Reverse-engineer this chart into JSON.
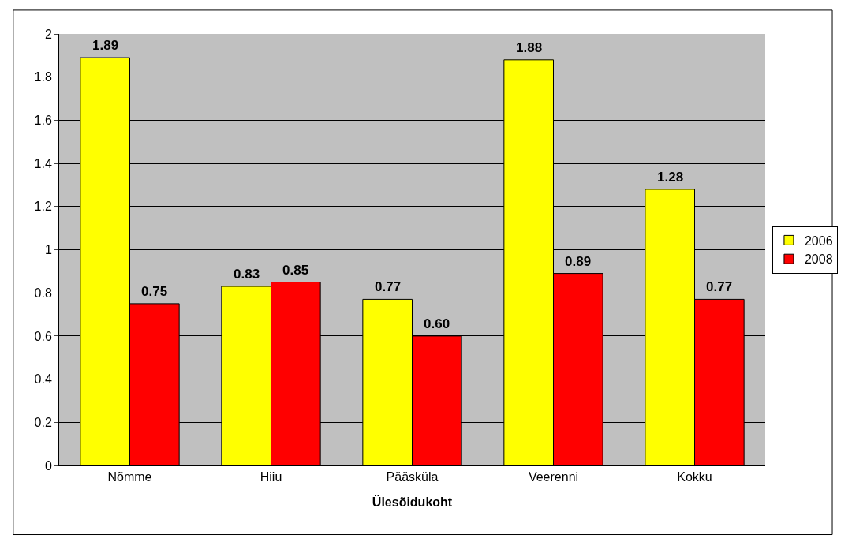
{
  "chart_data": {
    "type": "bar",
    "xlabel": "Ülesõidukoht",
    "categories": [
      "Nõmme",
      "Hiiu",
      "Pääsküla",
      "Veerenni",
      "Kokku"
    ],
    "series": [
      {
        "name": "2006",
        "color": "#ffff00",
        "values": [
          1.89,
          0.83,
          0.77,
          1.88,
          1.28
        ],
        "value_labels": [
          "1.89",
          "0.83",
          "0.77",
          "1.88",
          "1.28"
        ]
      },
      {
        "name": "2008",
        "color": "#ff0000",
        "values": [
          0.75,
          0.85,
          0.6,
          0.89,
          0.77
        ],
        "value_labels": [
          "0.75",
          "0.85",
          "0.60",
          "0.89",
          "0.77"
        ]
      }
    ],
    "ylim": [
      0,
      2
    ],
    "yticks": [
      0,
      0.2,
      0.4,
      0.6,
      0.8,
      1,
      1.2,
      1.4,
      1.6,
      1.8,
      2
    ],
    "grid": "y",
    "legend": "right"
  }
}
